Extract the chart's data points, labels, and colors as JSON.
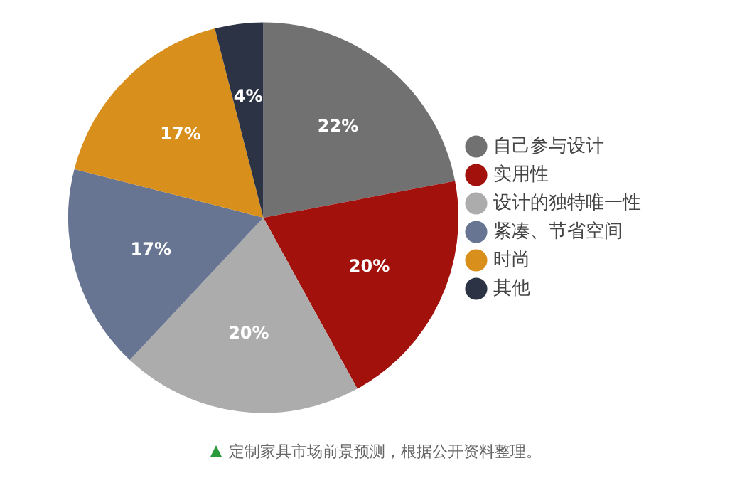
{
  "chart_data": {
    "type": "pie",
    "categories": [
      "自己参与设计",
      "实用性",
      "设计的独特唯一性",
      "紧凑、节省空间",
      "时尚",
      "其他"
    ],
    "values": [
      22,
      20,
      20,
      17,
      17,
      4
    ],
    "colors": [
      "#717171",
      "#a3110d",
      "#acacac",
      "#677592",
      "#d88f1c",
      "#2c3345"
    ],
    "value_labels": [
      "22%",
      "20%",
      "20%",
      "17%",
      "17%",
      "4%"
    ],
    "legend": "right",
    "annotations": [
      "定制家具市场前景预测，根据公开资料整理。"
    ]
  }
}
